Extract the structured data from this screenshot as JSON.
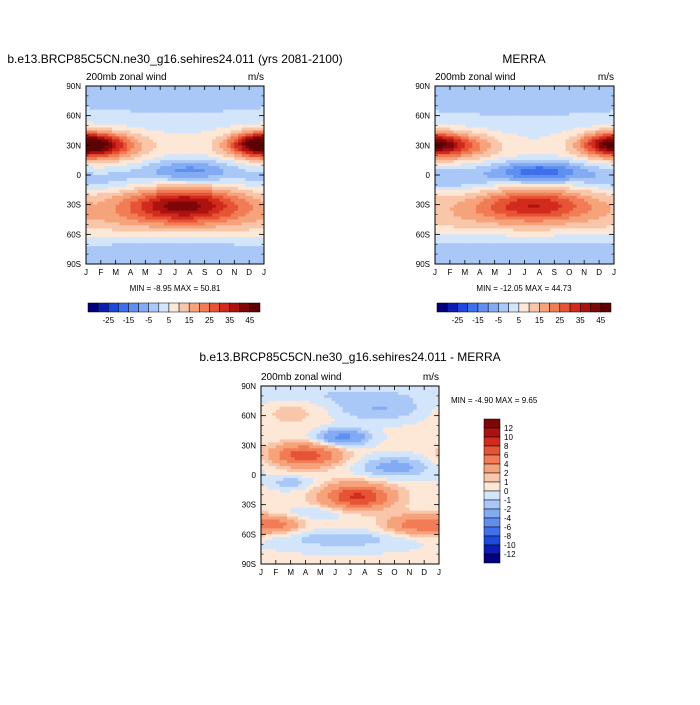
{
  "figure": {
    "background": "#ffffff"
  },
  "chart_data": [
    {
      "id": "model",
      "type": "heatmap",
      "title": "b.e13.BRCP85C5CN.ne30_g16.sehires24.011 (yrs 2081-2100)",
      "left_label": "200mb zonal wind",
      "right_label": "m/s",
      "x_tick_labels": [
        "J",
        "F",
        "M",
        "A",
        "M",
        "J",
        "J",
        "A",
        "S",
        "O",
        "N",
        "D",
        "J"
      ],
      "y_tick_labels": [
        "90N",
        "60N",
        "30N",
        "0",
        "30S",
        "60S",
        "90S"
      ],
      "y_range": [
        -90,
        90
      ],
      "x_range": [
        1,
        13
      ],
      "stats": "MIN =  -8.95 MAX =  50.81",
      "min": -8.95,
      "max": 50.81,
      "colorbar": {
        "orientation": "horizontal",
        "levels": [
          -30,
          -25,
          -20,
          -15,
          -10,
          -5,
          0,
          5,
          10,
          15,
          20,
          25,
          30,
          35,
          40,
          45
        ],
        "tick_labels": [
          "-25",
          "-15",
          "-5",
          "5",
          "15",
          "25",
          "35",
          "45"
        ],
        "colors": [
          "#02007f",
          "#0c1db3",
          "#1f49dc",
          "#3f6fea",
          "#5f8ff0",
          "#82abf3",
          "#a9c8f7",
          "#d3e5fa",
          "#fde8d8",
          "#fac6a9",
          "#f6a37c",
          "#f17c55",
          "#e65335",
          "#d22a1c",
          "#ac1210",
          "#7e0607",
          "#5c0204"
        ]
      },
      "fields": {
        "bg": 14,
        "subtropical_jets": [
          {
            "lat": 30,
            "lat_width": 9,
            "amplitude": 35,
            "month_center": 1.6,
            "month_width": 1.9,
            "periodic": true
          },
          {
            "lat": 32,
            "lat_width": 8,
            "amplitude": 20,
            "month_center": 12.6,
            "month_width": 1.2,
            "periodic": true
          },
          {
            "lat": -30,
            "lat_width": 12,
            "amplitude": 28,
            "month_center": 7.6,
            "month_width": 2.6,
            "periodic": true
          },
          {
            "lat": -42,
            "lat_width": 16,
            "amplitude": 10,
            "month_center": 7,
            "month_width": 9,
            "periodic": true
          }
        ],
        "easterlies": [
          {
            "lat": 4,
            "lat_width": 9,
            "amplitude": -20,
            "month_center": 8,
            "month_width": 2.4,
            "periodic": true
          },
          {
            "lat": -5,
            "lat_width": 9,
            "amplitude": -10,
            "month_center": 2,
            "month_width": 2.2,
            "periodic": true
          }
        ],
        "polar": [
          {
            "lat": 70,
            "lat_width": 20,
            "amplitude": -4,
            "month_center": 7,
            "month_width": 9,
            "periodic": true
          },
          {
            "lat": -78,
            "lat_width": 14,
            "amplitude": -6,
            "month_center": 7,
            "month_width": 9,
            "periodic": true
          }
        ]
      }
    },
    {
      "id": "merra",
      "type": "heatmap",
      "title": "MERRA",
      "left_label": "200mb zonal wind",
      "right_label": "m/s",
      "x_tick_labels": [
        "J",
        "F",
        "M",
        "A",
        "M",
        "J",
        "J",
        "A",
        "S",
        "O",
        "N",
        "D",
        "J"
      ],
      "y_tick_labels": [
        "90N",
        "60N",
        "30N",
        "0",
        "30S",
        "60S",
        "90S"
      ],
      "y_range": [
        -90,
        90
      ],
      "x_range": [
        1,
        13
      ],
      "stats": "MIN = -12.05 MAX =  44.73",
      "min": -12.05,
      "max": 44.73,
      "colorbar": {
        "orientation": "horizontal",
        "levels": [
          -30,
          -25,
          -20,
          -15,
          -10,
          -5,
          0,
          5,
          10,
          15,
          20,
          25,
          30,
          35,
          40,
          45
        ],
        "tick_labels": [
          "-25",
          "-15",
          "-5",
          "5",
          "15",
          "25",
          "35",
          "45"
        ],
        "colors": [
          "#02007f",
          "#0c1db3",
          "#1f49dc",
          "#3f6fea",
          "#5f8ff0",
          "#82abf3",
          "#a9c8f7",
          "#d3e5fa",
          "#fde8d8",
          "#fac6a9",
          "#f6a37c",
          "#f17c55",
          "#e65335",
          "#d22a1c",
          "#ac1210",
          "#7e0607",
          "#5c0204"
        ]
      },
      "fields": {
        "bg": 12,
        "subtropical_jets": [
          {
            "lat": 30,
            "lat_width": 9,
            "amplitude": 28,
            "month_center": 1.7,
            "month_width": 2.0,
            "periodic": true
          },
          {
            "lat": 32,
            "lat_width": 8,
            "amplitude": 18,
            "month_center": 12.6,
            "month_width": 1.2,
            "periodic": true
          },
          {
            "lat": -30,
            "lat_width": 11,
            "amplitude": 22,
            "month_center": 7.6,
            "month_width": 2.6,
            "periodic": true
          },
          {
            "lat": -42,
            "lat_width": 16,
            "amplitude": 9,
            "month_center": 7,
            "month_width": 9,
            "periodic": true
          }
        ],
        "easterlies": [
          {
            "lat": 3,
            "lat_width": 8,
            "amplitude": -26,
            "month_center": 8,
            "month_width": 2.3,
            "periodic": true
          },
          {
            "lat": -4,
            "lat_width": 9,
            "amplitude": -12,
            "month_center": 2,
            "month_width": 2.2,
            "periodic": true
          }
        ],
        "polar": [
          {
            "lat": 70,
            "lat_width": 20,
            "amplitude": -4,
            "month_center": 7,
            "month_width": 9,
            "periodic": true
          },
          {
            "lat": -78,
            "lat_width": 14,
            "amplitude": -6,
            "month_center": 7,
            "month_width": 9,
            "periodic": true
          }
        ]
      }
    },
    {
      "id": "difference",
      "type": "heatmap",
      "title": "b.e13.BRCP85C5CN.ne30_g16.sehires24.011 - MERRA",
      "left_label": "200mb zonal wind",
      "right_label": "m/s",
      "x_tick_labels": [
        "J",
        "F",
        "M",
        "A",
        "M",
        "J",
        "J",
        "A",
        "S",
        "O",
        "N",
        "D",
        "J"
      ],
      "y_tick_labels": [
        "90N",
        "60N",
        "30N",
        "0",
        "30S",
        "60S",
        "90S"
      ],
      "y_range": [
        -90,
        90
      ],
      "x_range": [
        1,
        13
      ],
      "stats": "MIN =  -4.90 MAX =   9.65",
      "min": -4.9,
      "max": 9.65,
      "colorbar": {
        "orientation": "vertical",
        "levels": [
          -12,
          -10,
          -8,
          -6,
          -4,
          -2,
          -1,
          0,
          1,
          2,
          4,
          6,
          8,
          10,
          12
        ],
        "tick_labels": [
          "-12",
          "-10",
          "-8",
          "-6",
          "-4",
          "-2",
          "-1",
          "0",
          "1",
          "2",
          "4",
          "6",
          "8",
          "10",
          "12"
        ],
        "colors": [
          "#02007f",
          "#0c1db3",
          "#1f49dc",
          "#3f6fea",
          "#5f8ff0",
          "#82abf3",
          "#a9c8f7",
          "#d3e5fa",
          "#fde8d8",
          "#fac6a9",
          "#f6a37c",
          "#f17c55",
          "#e65335",
          "#d22a1c",
          "#ac1210",
          "#7e0607"
        ]
      },
      "fields": {
        "bg": 0.6,
        "blobs": [
          {
            "lat": 20,
            "lat_width": 8,
            "month": 4,
            "month_width": 1.6,
            "amplitude": 7
          },
          {
            "lat": -22,
            "lat_width": 9,
            "month": 7.5,
            "month_width": 1.6,
            "amplitude": 8
          },
          {
            "lat": -50,
            "lat_width": 7,
            "month": 11.5,
            "month_width": 1.4,
            "amplitude": 5
          },
          {
            "lat": -50,
            "lat_width": 6,
            "month": 2,
            "month_width": 1.2,
            "amplitude": 4
          },
          {
            "lat": 38,
            "lat_width": 6,
            "month": 6.5,
            "month_width": 1.2,
            "amplitude": -5
          },
          {
            "lat": 65,
            "lat_width": 8,
            "month": 9,
            "month_width": 2.5,
            "amplitude": -2
          },
          {
            "lat": 8,
            "lat_width": 8,
            "month": 10,
            "month_width": 1.8,
            "amplitude": -3
          },
          {
            "lat": -8,
            "lat_width": 5,
            "month": 3,
            "month_width": 1.0,
            "amplitude": -2
          },
          {
            "lat": -65,
            "lat_width": 6,
            "month": 6.5,
            "month_width": 2.8,
            "amplitude": -2
          },
          {
            "lat": -38,
            "lat_width": 5,
            "month": 5,
            "month_width": 1.5,
            "amplitude": -1.5
          },
          {
            "lat": 65,
            "lat_width": 10,
            "month": 3,
            "month_width": 2,
            "amplitude": 1.5
          },
          {
            "lat": 80,
            "lat_width": 8,
            "month": 6,
            "month_width": 6,
            "amplitude": -1.2
          }
        ]
      }
    }
  ]
}
